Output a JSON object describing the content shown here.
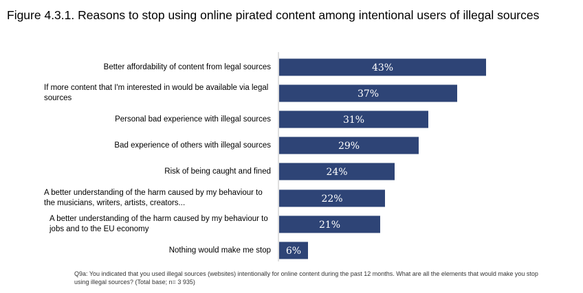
{
  "title": "Figure 4.3.1. Reasons to stop using online pirated content among intentional users of illegal sources",
  "note": "Q9a: You indicated that you used illegal sources (websites) intentionally for online content during the past 12 months. What are all the elements that would make you stop using illegal sources? (Total base; n= 3 935)",
  "colors": {
    "bar": "#2E4476",
    "axis": "#bfbfbf",
    "label": "#ffffff"
  },
  "chart_data": {
    "type": "bar",
    "orientation": "horizontal",
    "categories": [
      "Better affordability of content from legal sources",
      "If more content that I'm interested in would be available via legal sources",
      "Personal bad experience with illegal sources",
      "Bad experience of others with illegal sources",
      "Risk of being caught and fined",
      "A better understanding of the harm caused by my behaviour to the musicians, writers, artists, creators...",
      "A better understanding of the harm caused by my behaviour to jobs and to the EU economy",
      "Nothing would make me stop"
    ],
    "values": [
      43,
      37,
      31,
      29,
      24,
      22,
      21,
      6
    ],
    "data_labels": [
      "43%",
      "37%",
      "31%",
      "29%",
      "24%",
      "22%",
      "21%",
      "6%"
    ],
    "unit": "%",
    "xlim": [
      0,
      50
    ],
    "grid": false,
    "legend": "none"
  }
}
